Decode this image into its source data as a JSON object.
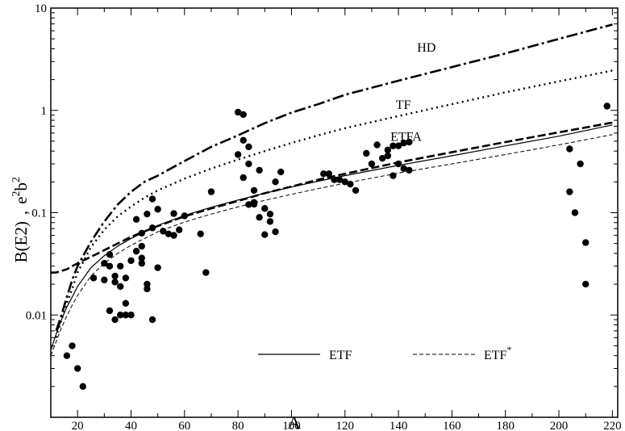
{
  "chart_data": {
    "type": "scatter",
    "title": "",
    "xlabel": "A",
    "ylabel": "B(E2) , e^2 b^2",
    "ylabel_parts": {
      "main": "B(E2)",
      "sep": ",",
      "e": "e",
      "e_exp": "2",
      "b": "b",
      "b_exp": "2"
    },
    "xlim": [
      10,
      222
    ],
    "ylim": [
      0.001,
      10
    ],
    "yscale": "log",
    "grid": false,
    "x_ticks": [
      20,
      40,
      60,
      80,
      100,
      120,
      140,
      160,
      180,
      200,
      220
    ],
    "y_ticks": [
      {
        "value": 0.01,
        "label": "0.01"
      },
      {
        "value": 0.1,
        "label": "0.1"
      },
      {
        "value": 1,
        "label": "1"
      },
      {
        "value": 10,
        "label": "10"
      }
    ],
    "series": [
      {
        "name": "HD",
        "style": "dash-dot",
        "x": [
          12,
          14,
          16,
          18,
          20,
          25,
          30,
          35,
          40,
          45,
          50,
          60,
          70,
          80,
          90,
          100,
          110,
          120,
          140,
          160,
          180,
          200,
          220
        ],
        "y": [
          0.007,
          0.01,
          0.015,
          0.022,
          0.03,
          0.052,
          0.082,
          0.12,
          0.16,
          0.2,
          0.23,
          0.32,
          0.44,
          0.57,
          0.75,
          0.95,
          1.15,
          1.42,
          1.95,
          2.65,
          3.6,
          5.0,
          6.9
        ]
      },
      {
        "name": "TF",
        "style": "dotted",
        "x": [
          12,
          14,
          16,
          18,
          20,
          25,
          30,
          35,
          40,
          45,
          50,
          60,
          70,
          80,
          90,
          100,
          110,
          120,
          140,
          160,
          180,
          200,
          220
        ],
        "y": [
          0.006,
          0.009,
          0.013,
          0.018,
          0.026,
          0.046,
          0.068,
          0.092,
          0.115,
          0.14,
          0.165,
          0.215,
          0.27,
          0.33,
          0.4,
          0.48,
          0.57,
          0.67,
          0.88,
          1.15,
          1.5,
          1.92,
          2.45
        ]
      },
      {
        "name": "ETFA",
        "style": "dashed",
        "x": [
          10,
          12,
          14,
          16,
          18,
          20,
          25,
          30,
          35,
          40,
          50,
          60,
          70,
          80,
          90,
          100,
          110,
          120,
          140,
          160,
          180,
          200,
          220
        ],
        "y": [
          0.026,
          0.026,
          0.027,
          0.028,
          0.03,
          0.032,
          0.037,
          0.043,
          0.05,
          0.058,
          0.074,
          0.092,
          0.11,
          0.13,
          0.155,
          0.18,
          0.21,
          0.24,
          0.31,
          0.39,
          0.49,
          0.61,
          0.76
        ]
      },
      {
        "name": "ETF",
        "style": "solid",
        "x": [
          10,
          12,
          14,
          16,
          18,
          20,
          25,
          30,
          35,
          40,
          50,
          60,
          70,
          80,
          90,
          100,
          110,
          120,
          140,
          160,
          180,
          200,
          220
        ],
        "y": [
          0.0045,
          0.0065,
          0.009,
          0.012,
          0.015,
          0.019,
          0.029,
          0.038,
          0.047,
          0.056,
          0.075,
          0.094,
          0.113,
          0.133,
          0.155,
          0.178,
          0.203,
          0.23,
          0.29,
          0.36,
          0.45,
          0.56,
          0.72
        ]
      },
      {
        "name": "ETF*",
        "style": "dashed-thin",
        "x": [
          10,
          12,
          14,
          16,
          18,
          20,
          25,
          30,
          35,
          40,
          50,
          60,
          70,
          80,
          90,
          100,
          110,
          120,
          140,
          160,
          180,
          200,
          220
        ],
        "y": [
          0.004,
          0.0055,
          0.0075,
          0.0098,
          0.0125,
          0.0155,
          0.024,
          0.032,
          0.04,
          0.048,
          0.065,
          0.081,
          0.097,
          0.114,
          0.132,
          0.151,
          0.172,
          0.194,
          0.244,
          0.3,
          0.37,
          0.46,
          0.58
        ]
      }
    ],
    "points": [
      {
        "x": 16,
        "y": 0.004
      },
      {
        "x": 18,
        "y": 0.005
      },
      {
        "x": 20,
        "y": 0.003
      },
      {
        "x": 22,
        "y": 0.002
      },
      {
        "x": 26,
        "y": 0.023
      },
      {
        "x": 30,
        "y": 0.032
      },
      {
        "x": 30,
        "y": 0.022
      },
      {
        "x": 32,
        "y": 0.039
      },
      {
        "x": 32,
        "y": 0.011
      },
      {
        "x": 32,
        "y": 0.03
      },
      {
        "x": 34,
        "y": 0.024
      },
      {
        "x": 34,
        "y": 0.021
      },
      {
        "x": 34,
        "y": 0.009
      },
      {
        "x": 36,
        "y": 0.03
      },
      {
        "x": 36,
        "y": 0.019
      },
      {
        "x": 36,
        "y": 0.01
      },
      {
        "x": 38,
        "y": 0.013
      },
      {
        "x": 38,
        "y": 0.023
      },
      {
        "x": 38,
        "y": 0.01
      },
      {
        "x": 40,
        "y": 0.034
      },
      {
        "x": 40,
        "y": 0.01
      },
      {
        "x": 42,
        "y": 0.086
      },
      {
        "x": 42,
        "y": 0.042
      },
      {
        "x": 44,
        "y": 0.047
      },
      {
        "x": 44,
        "y": 0.036
      },
      {
        "x": 44,
        "y": 0.032
      },
      {
        "x": 44,
        "y": 0.063
      },
      {
        "x": 46,
        "y": 0.097
      },
      {
        "x": 46,
        "y": 0.02
      },
      {
        "x": 46,
        "y": 0.018
      },
      {
        "x": 48,
        "y": 0.136
      },
      {
        "x": 48,
        "y": 0.071
      },
      {
        "x": 48,
        "y": 0.009
      },
      {
        "x": 50,
        "y": 0.108
      },
      {
        "x": 50,
        "y": 0.029
      },
      {
        "x": 52,
        "y": 0.066
      },
      {
        "x": 54,
        "y": 0.062
      },
      {
        "x": 56,
        "y": 0.098
      },
      {
        "x": 56,
        "y": 0.06
      },
      {
        "x": 58,
        "y": 0.068
      },
      {
        "x": 60,
        "y": 0.093
      },
      {
        "x": 66,
        "y": 0.062
      },
      {
        "x": 68,
        "y": 0.026
      },
      {
        "x": 70,
        "y": 0.16
      },
      {
        "x": 80,
        "y": 0.96
      },
      {
        "x": 80,
        "y": 0.37
      },
      {
        "x": 82,
        "y": 0.91
      },
      {
        "x": 82,
        "y": 0.51
      },
      {
        "x": 82,
        "y": 0.22
      },
      {
        "x": 84,
        "y": 0.44
      },
      {
        "x": 84,
        "y": 0.3
      },
      {
        "x": 84,
        "y": 0.12
      },
      {
        "x": 86,
        "y": 0.165
      },
      {
        "x": 86,
        "y": 0.126
      },
      {
        "x": 86,
        "y": 0.121
      },
      {
        "x": 88,
        "y": 0.26
      },
      {
        "x": 88,
        "y": 0.09
      },
      {
        "x": 90,
        "y": 0.061
      },
      {
        "x": 90,
        "y": 0.11
      },
      {
        "x": 92,
        "y": 0.097
      },
      {
        "x": 92,
        "y": 0.082
      },
      {
        "x": 94,
        "y": 0.2
      },
      {
        "x": 94,
        "y": 0.065
      },
      {
        "x": 96,
        "y": 0.25
      },
      {
        "x": 112,
        "y": 0.24
      },
      {
        "x": 114,
        "y": 0.24
      },
      {
        "x": 116,
        "y": 0.21
      },
      {
        "x": 118,
        "y": 0.21
      },
      {
        "x": 120,
        "y": 0.2
      },
      {
        "x": 122,
        "y": 0.19
      },
      {
        "x": 124,
        "y": 0.165
      },
      {
        "x": 128,
        "y": 0.38
      },
      {
        "x": 130,
        "y": 0.3
      },
      {
        "x": 132,
        "y": 0.46
      },
      {
        "x": 134,
        "y": 0.34
      },
      {
        "x": 136,
        "y": 0.41
      },
      {
        "x": 136,
        "y": 0.36
      },
      {
        "x": 138,
        "y": 0.45
      },
      {
        "x": 138,
        "y": 0.23
      },
      {
        "x": 140,
        "y": 0.45
      },
      {
        "x": 140,
        "y": 0.3
      },
      {
        "x": 142,
        "y": 0.48
      },
      {
        "x": 142,
        "y": 0.27
      },
      {
        "x": 144,
        "y": 0.49
      },
      {
        "x": 144,
        "y": 0.26
      },
      {
        "x": 204,
        "y": 0.42
      },
      {
        "x": 204,
        "y": 0.16
      },
      {
        "x": 206,
        "y": 0.1
      },
      {
        "x": 208,
        "y": 0.3
      },
      {
        "x": 210,
        "y": 0.051
      },
      {
        "x": 210,
        "y": 0.02
      },
      {
        "x": 218,
        "y": 1.1
      }
    ],
    "curve_labels": [
      {
        "series": "HD",
        "text": "HD",
        "x": 147,
        "y": 4.2
      },
      {
        "series": "TF",
        "text": "TF",
        "x": 139,
        "y": 1.15
      },
      {
        "series": "ETFA",
        "text": "ETFA",
        "x": 137,
        "y": 0.56
      }
    ],
    "legend": {
      "placement": "bottom",
      "entries": [
        {
          "series": "ETF",
          "text": "ETF",
          "style": "solid"
        },
        {
          "series": "ETF*",
          "text": "ETF",
          "superscript": "*",
          "style": "dashed-thin"
        }
      ]
    }
  }
}
